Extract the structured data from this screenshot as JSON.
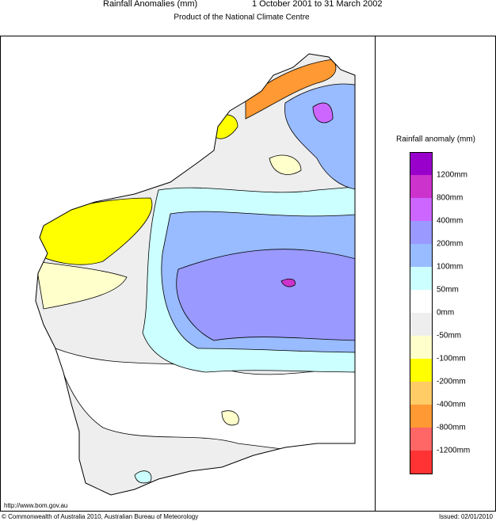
{
  "header": {
    "title": "Rainfall Anomalies (mm)",
    "period": "1 October 2001 to 31 March 2002",
    "subtitle": "Product of the National Climate Centre"
  },
  "legend": {
    "title": "Rainfall anomaly (mm)",
    "colors": [
      "#9900cc",
      "#cc33cc",
      "#cc66ff",
      "#9999ff",
      "#99bbff",
      "#ccffff",
      "#ffffff",
      "#eeeeee",
      "#ffffcc",
      "#ffff00",
      "#ffcc66",
      "#ff9933",
      "#ff6666",
      "#ff3333"
    ],
    "labels": [
      "1200mm",
      "800mm",
      "400mm",
      "200mm",
      "100mm",
      "50mm",
      "0mm",
      "-50mm",
      "-100mm",
      "-200mm",
      "-400mm",
      "-800mm",
      "-1200mm"
    ]
  },
  "footer": {
    "url": "http://www.bom.gov.au",
    "copyright": "© Commonwealth of Australia 2010, Australian Bureau of Meteorology",
    "issued": "Issued: 02/01/2010"
  }
}
